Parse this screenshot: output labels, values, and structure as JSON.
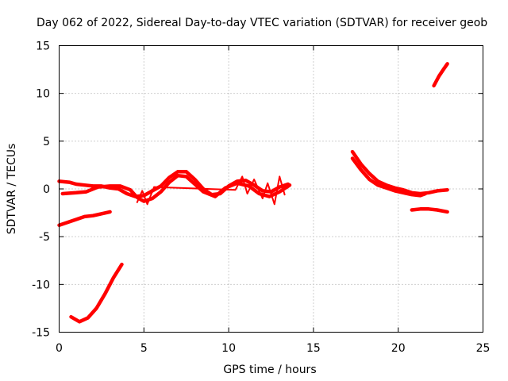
{
  "chart_data": {
    "type": "line",
    "title": "Day 062 of 2022, Sidereal Day-to-day VTEC variation (SDTVAR) for receiver geob",
    "xlabel": "GPS time / hours",
    "ylabel": "SDTVAR / TECUs",
    "xlim": [
      0,
      25
    ],
    "ylim": [
      -15,
      15
    ],
    "xticks": [
      0,
      5,
      10,
      15,
      20,
      25
    ],
    "yticks": [
      -15,
      -10,
      -5,
      0,
      5,
      10,
      15
    ],
    "grid": true,
    "color": "#ff0000",
    "series": [
      {
        "name": "arc-main",
        "points": [
          [
            0.0,
            0.8
          ],
          [
            0.6,
            0.7
          ],
          [
            1.0,
            0.5
          ],
          [
            1.5,
            0.4
          ],
          [
            2.0,
            0.3
          ],
          [
            2.5,
            0.3
          ],
          [
            3.0,
            0.1
          ],
          [
            3.5,
            0.0
          ],
          [
            4.0,
            -0.5
          ],
          [
            4.5,
            -0.8
          ],
          [
            5.0,
            -0.7
          ],
          [
            5.5,
            -0.2
          ],
          [
            6.0,
            0.3
          ],
          [
            6.5,
            1.2
          ],
          [
            7.0,
            1.8
          ],
          [
            7.5,
            1.8
          ],
          [
            8.0,
            1.0
          ],
          [
            8.5,
            0.0
          ],
          [
            9.0,
            -0.6
          ],
          [
            9.5,
            -0.5
          ],
          [
            10.0,
            0.3
          ],
          [
            10.5,
            0.8
          ],
          [
            11.0,
            0.9
          ],
          [
            11.5,
            0.4
          ],
          [
            12.0,
            -0.2
          ],
          [
            12.5,
            -0.3
          ],
          [
            13.0,
            0.2
          ],
          [
            13.5,
            0.5
          ]
        ]
      },
      {
        "name": "arc-b",
        "points": [
          [
            0.2,
            -0.5
          ],
          [
            1.0,
            -0.4
          ],
          [
            1.6,
            -0.3
          ],
          [
            2.3,
            0.2
          ],
          [
            3.0,
            0.3
          ],
          [
            3.6,
            0.3
          ],
          [
            4.2,
            -0.1
          ],
          [
            4.6,
            -0.9
          ],
          [
            5.0,
            -1.3
          ],
          [
            5.5,
            -1.0
          ],
          [
            6.0,
            -0.3
          ],
          [
            6.5,
            0.7
          ],
          [
            7.0,
            1.4
          ],
          [
            7.5,
            1.3
          ],
          [
            8.0,
            0.5
          ],
          [
            8.5,
            -0.3
          ],
          [
            9.2,
            -0.8
          ],
          [
            9.8,
            0.1
          ],
          [
            10.5,
            0.6
          ],
          [
            11.2,
            0.3
          ],
          [
            11.8,
            -0.5
          ],
          [
            12.4,
            -0.8
          ],
          [
            13.0,
            -0.3
          ],
          [
            13.6,
            0.4
          ]
        ]
      },
      {
        "name": "arc-c",
        "points": [
          [
            0.0,
            -3.8
          ],
          [
            0.5,
            -3.5
          ],
          [
            1.0,
            -3.2
          ],
          [
            1.5,
            -2.9
          ],
          [
            2.0,
            -2.8
          ],
          [
            2.5,
            -2.6
          ],
          [
            3.0,
            -2.4
          ]
        ]
      },
      {
        "name": "arc-d",
        "points": [
          [
            0.7,
            -13.4
          ],
          [
            1.2,
            -13.9
          ],
          [
            1.7,
            -13.5
          ],
          [
            2.2,
            -12.5
          ],
          [
            2.7,
            -11.0
          ],
          [
            3.2,
            -9.3
          ],
          [
            3.7,
            -7.9
          ]
        ]
      },
      {
        "name": "arc-e",
        "points": [
          [
            17.3,
            3.9
          ],
          [
            17.8,
            2.6
          ],
          [
            18.3,
            1.6
          ],
          [
            18.8,
            0.8
          ],
          [
            19.3,
            0.4
          ],
          [
            19.8,
            0.1
          ],
          [
            20.3,
            -0.1
          ],
          [
            20.8,
            -0.4
          ],
          [
            21.3,
            -0.5
          ],
          [
            21.8,
            -0.4
          ],
          [
            22.3,
            -0.2
          ],
          [
            22.9,
            -0.1
          ]
        ]
      },
      {
        "name": "arc-f",
        "points": [
          [
            17.3,
            3.2
          ],
          [
            17.8,
            2.0
          ],
          [
            18.3,
            1.0
          ],
          [
            18.8,
            0.4
          ],
          [
            19.3,
            0.1
          ],
          [
            19.8,
            -0.2
          ],
          [
            20.3,
            -0.4
          ],
          [
            20.8,
            -0.6
          ],
          [
            21.3,
            -0.7
          ],
          [
            21.6,
            -0.5
          ]
        ]
      },
      {
        "name": "arc-g",
        "points": [
          [
            20.8,
            -2.2
          ],
          [
            21.3,
            -2.1
          ],
          [
            21.8,
            -2.1
          ],
          [
            22.3,
            -2.2
          ],
          [
            22.9,
            -2.4
          ]
        ]
      },
      {
        "name": "arc-h",
        "points": [
          [
            22.1,
            10.8
          ],
          [
            22.4,
            11.8
          ],
          [
            22.7,
            12.6
          ],
          [
            22.9,
            13.1
          ]
        ]
      },
      {
        "name": "noise-main",
        "points": [
          [
            4.6,
            -1.4
          ],
          [
            4.9,
            -0.2
          ],
          [
            5.2,
            -1.6
          ],
          [
            5.6,
            0.2
          ],
          [
            10.4,
            -0.1
          ],
          [
            10.8,
            1.3
          ],
          [
            11.1,
            -0.5
          ],
          [
            11.5,
            1.0
          ],
          [
            12.0,
            -1.0
          ],
          [
            12.3,
            0.6
          ],
          [
            12.7,
            -1.6
          ],
          [
            13.0,
            1.3
          ],
          [
            13.3,
            -0.6
          ]
        ]
      }
    ]
  }
}
